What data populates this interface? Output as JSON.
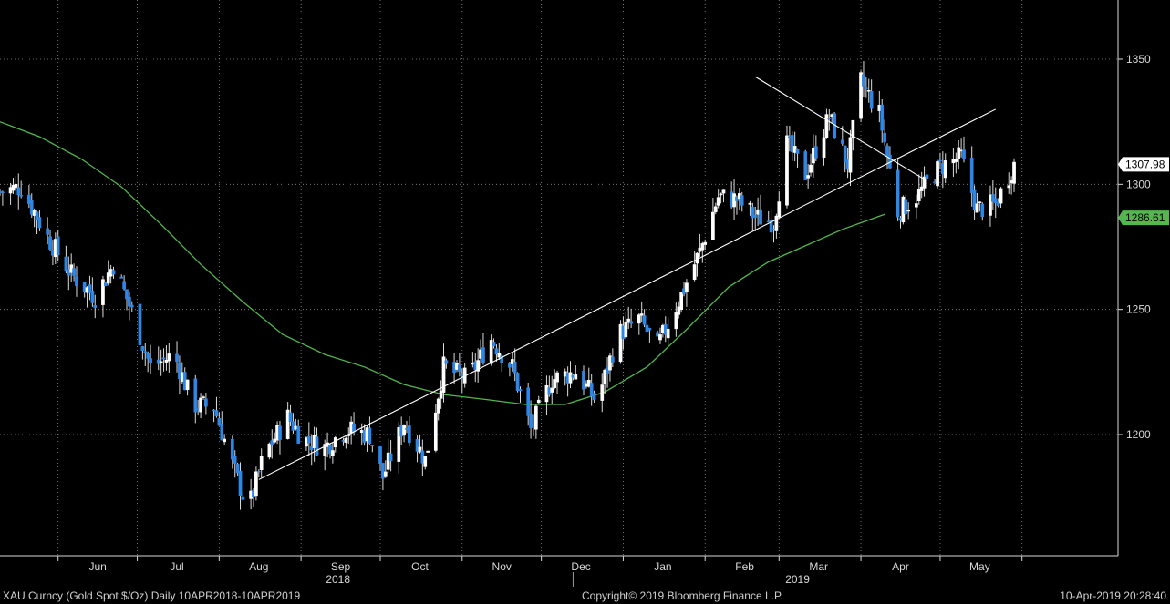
{
  "chart_data": {
    "type": "candlestick",
    "title": "",
    "xlabel": "",
    "ylabel": "",
    "ylim": [
      1160,
      1370
    ],
    "yticks": [
      1200,
      1250,
      1300,
      1350
    ],
    "grid": true,
    "x_labels": [
      "Jun",
      "Jul",
      "Aug",
      "Sep",
      "Oct",
      "Nov",
      "Dec",
      "Jan",
      "Feb",
      "Mar",
      "Apr",
      "May"
    ],
    "year_labels": [
      "2018",
      "2019"
    ],
    "last_price": {
      "label": "1307.98",
      "value": 1307.98,
      "color": "#ffffff"
    },
    "moving_average": {
      "label": "1286.61",
      "value": 1286.61,
      "color": "#52b74c",
      "points": [
        [
          "2018-05-10",
          1325
        ],
        [
          "2018-05-25",
          1319
        ],
        [
          "2018-06-10",
          1310
        ],
        [
          "2018-06-25",
          1299
        ],
        [
          "2018-07-10",
          1284
        ],
        [
          "2018-07-25",
          1268
        ],
        [
          "2018-08-10",
          1253
        ],
        [
          "2018-08-25",
          1240
        ],
        [
          "2018-09-10",
          1232
        ],
        [
          "2018-09-25",
          1227
        ],
        [
          "2018-10-10",
          1220
        ],
        [
          "2018-10-25",
          1216
        ],
        [
          "2018-11-10",
          1214
        ],
        [
          "2018-11-25",
          1212
        ],
        [
          "2018-12-10",
          1212
        ],
        [
          "2018-12-25",
          1217
        ],
        [
          "2019-01-10",
          1227
        ],
        [
          "2019-01-25",
          1242
        ],
        [
          "2019-02-10",
          1259
        ],
        [
          "2019-02-25",
          1269
        ],
        [
          "2019-03-10",
          1275
        ],
        [
          "2019-03-25",
          1282
        ],
        [
          "2019-04-02",
          1285
        ],
        [
          "2019-04-10",
          1288
        ]
      ]
    },
    "trendlines": [
      {
        "name": "support",
        "from": [
          "2018-08-16",
          1182
        ],
        "to": [
          "2019-05-22",
          1330
        ]
      },
      {
        "name": "resistance",
        "from": [
          "2019-02-20",
          1343
        ],
        "to": [
          "2019-04-25",
          1302
        ]
      }
    ],
    "ohlc_anchors": [
      [
        "2018-05-10",
        1297
      ],
      [
        "2018-05-18",
        1299
      ],
      [
        "2018-05-28",
        1279
      ],
      [
        "2018-06-06",
        1264
      ],
      [
        "2018-06-15",
        1255
      ],
      [
        "2018-06-22",
        1268
      ],
      [
        "2018-06-29",
        1249
      ],
      [
        "2018-07-06",
        1227
      ],
      [
        "2018-07-15",
        1232
      ],
      [
        "2018-07-22",
        1212
      ],
      [
        "2018-07-30",
        1211
      ],
      [
        "2018-08-06",
        1188
      ],
      [
        "2018-08-12",
        1170
      ],
      [
        "2018-08-18",
        1192
      ],
      [
        "2018-08-27",
        1207
      ],
      [
        "2018-09-02",
        1198
      ],
      [
        "2018-09-10",
        1195
      ],
      [
        "2018-09-18",
        1202
      ],
      [
        "2018-09-27",
        1200
      ],
      [
        "2018-10-02",
        1183
      ],
      [
        "2018-10-10",
        1205
      ],
      [
        "2018-10-18",
        1190
      ],
      [
        "2018-10-25",
        1227
      ],
      [
        "2018-11-03",
        1222
      ],
      [
        "2018-11-12",
        1238
      ],
      [
        "2018-11-20",
        1227
      ],
      [
        "2018-11-27",
        1202
      ],
      [
        "2018-12-05",
        1222
      ],
      [
        "2018-12-14",
        1225
      ],
      [
        "2018-12-22",
        1213
      ],
      [
        "2018-12-30",
        1240
      ],
      [
        "2019-01-07",
        1246
      ],
      [
        "2019-01-14",
        1235
      ],
      [
        "2019-01-21",
        1251
      ],
      [
        "2019-01-30",
        1273
      ],
      [
        "2019-02-06",
        1295
      ],
      [
        "2019-02-13",
        1294
      ],
      [
        "2019-02-20",
        1287
      ],
      [
        "2019-02-27",
        1285
      ],
      [
        "2019-03-04",
        1316
      ],
      [
        "2019-03-11",
        1304
      ],
      [
        "2019-03-20",
        1327
      ],
      [
        "2019-03-27",
        1308
      ],
      [
        "2019-04-01",
        1341
      ],
      [
        "2019-04-08",
        1328
      ],
      [
        "2019-04-15",
        1289
      ],
      [
        "2019-04-22",
        1295
      ],
      [
        "2019-05-01",
        1307
      ],
      [
        "2019-05-09",
        1311
      ],
      [
        "2019-05-15",
        1290
      ],
      [
        "2019-05-22",
        1292
      ],
      [
        "2019-05-29",
        1308
      ]
    ]
  },
  "footer": {
    "left": "XAU Curncy (Gold Spot  $/Oz)  Daily 10APR2018-10APR2019",
    "center": "Copyright© 2019 Bloomberg Finance L.P.",
    "right": "10-Apr-2019 20:28:40"
  }
}
